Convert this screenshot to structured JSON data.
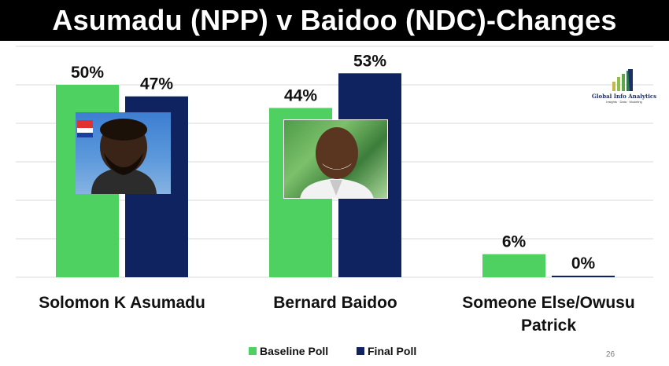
{
  "title": "Asumadu (NPP) v Baidoo (NDC)-Changes",
  "page_number": "26",
  "logo": {
    "name": "Global Info Analytics",
    "tagline": "Insights · Data · Modeling",
    "icon": "bar-growth-logo-icon"
  },
  "photos": [
    {
      "name": "asumadu-photo",
      "depicts": "portrait-photo"
    },
    {
      "name": "baidoo-photo",
      "depicts": "portrait-photo"
    }
  ],
  "colors": {
    "baseline": "#4fd162",
    "final": "#0f2361",
    "gridline": "#d9d9d9",
    "title_bg": "#000000"
  },
  "chart_data": {
    "type": "bar",
    "title": "Asumadu (NPP) v Baidoo (NDC)-Changes",
    "categories": [
      "Solomon K Asumadu",
      "Bernard Baidoo",
      "Someone Else/Owusu Patrick"
    ],
    "series": [
      {
        "name": "Baseline Poll",
        "values": [
          50,
          44,
          6
        ],
        "labels": [
          "50%",
          "44%",
          "6%"
        ]
      },
      {
        "name": "Final Poll",
        "values": [
          47,
          53,
          0
        ],
        "labels": [
          "47%",
          "53%",
          "0%"
        ]
      }
    ],
    "ylim": [
      0,
      60
    ],
    "grid": true,
    "legend": "bottom-center",
    "xlabel": "",
    "ylabel": ""
  }
}
